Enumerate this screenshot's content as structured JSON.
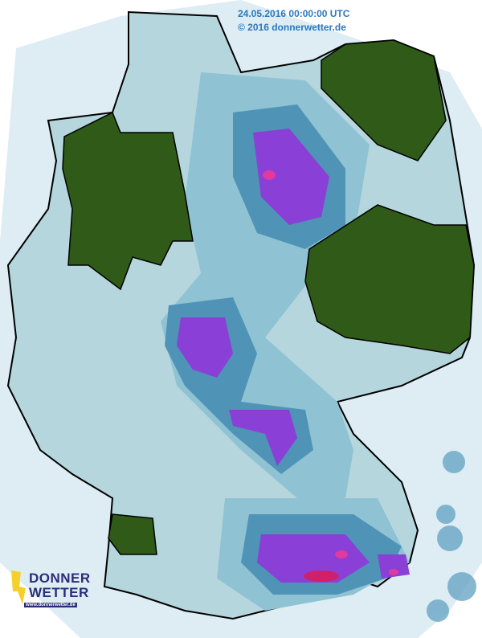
{
  "header": {
    "timestamp": "24.05.2016 00:00:00 UTC",
    "copyright": "© 2016 donnerwetter.de"
  },
  "logo": {
    "line1": "DONNER",
    "line2": "WETTER",
    "url": "www.donnerwetter.de"
  },
  "colors": {
    "no_rain_land": "#2f5a17",
    "light": "#b8d9e2",
    "light_mid": "#8fc3d3",
    "mid": "#5a9fbd",
    "dark": "#2f6f9a",
    "heavy": "#8a3fd6",
    "extreme": "#e03aa0",
    "brand": "#2b2d78",
    "text": "#2a78c0"
  }
}
